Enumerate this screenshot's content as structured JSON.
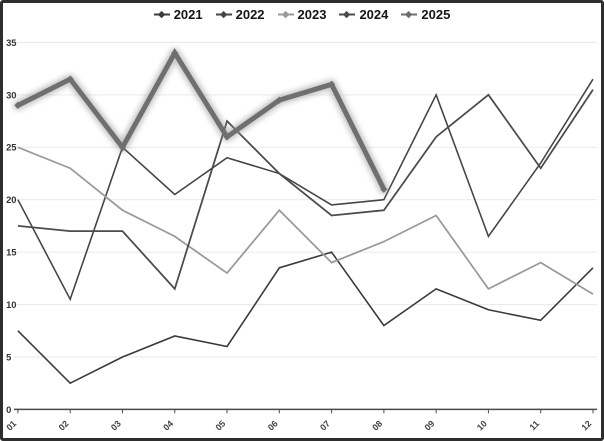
{
  "frame": {
    "background": "#ffffff",
    "border_color": "#2e2e2e",
    "grid_color": "#ebebeb",
    "axis_color": "#4a4a4a",
    "y_label_color": "#333333",
    "x_label_color": "#444444"
  },
  "legend": {
    "position": "top-center",
    "marker_shape": "diamond-with-line"
  },
  "chart_data": {
    "type": "line",
    "title": "",
    "xlabel": "",
    "ylabel": "",
    "categories": [
      "01",
      "02",
      "03",
      "04",
      "05",
      "06",
      "07",
      "08",
      "09",
      "10",
      "11",
      "12"
    ],
    "series": [
      {
        "name": "2021",
        "color": "#3a3a3a",
        "width": 1.6,
        "values": [
          7.5,
          2.5,
          5,
          7,
          6,
          13.5,
          15,
          8,
          11.5,
          9.5,
          8.5,
          13.5
        ]
      },
      {
        "name": "2022",
        "color": "#454545",
        "width": 1.6,
        "values": [
          20,
          10.5,
          25,
          20.5,
          24,
          22.5,
          19.5,
          20,
          30,
          16.5,
          23.5,
          31.5
        ]
      },
      {
        "name": "2023",
        "color": "#9a9a9a",
        "width": 1.8,
        "values": [
          25,
          23,
          19,
          16.5,
          13,
          19,
          14,
          16,
          18.5,
          11.5,
          14,
          11
        ]
      },
      {
        "name": "2024",
        "color": "#4c4c4c",
        "width": 1.8,
        "values": [
          17.5,
          17,
          17,
          11.5,
          27.5,
          22.5,
          18.5,
          19,
          26,
          30,
          23,
          30.5
        ]
      },
      {
        "name": "2025",
        "color": "#6f6f6f",
        "width": 5,
        "highlight": true,
        "values": [
          29,
          31.5,
          25,
          34,
          26,
          29.5,
          31,
          21
        ]
      }
    ],
    "ylim": [
      0,
      35
    ],
    "yticks": [
      0,
      5,
      10,
      15,
      20,
      25,
      30,
      35
    ],
    "grid": true,
    "legend_position": "top",
    "x_tick_rotation": -45
  }
}
